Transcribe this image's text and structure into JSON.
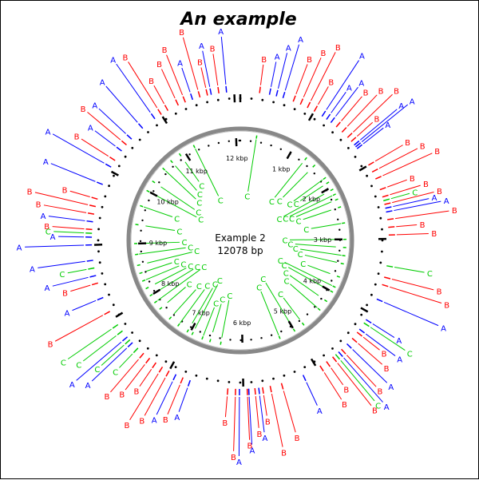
{
  "title": "An example",
  "plasmid": {
    "name": "Example 2",
    "length_label": "12078 bp",
    "length": 12078
  },
  "ticks": {
    "labels": [
      "1 kbp",
      "2 kbp",
      "3 kbp",
      "4 kbp",
      "5 kbp",
      "6 kbp",
      "7 kbp",
      "8 kbp",
      "9 kbp",
      "10 kbp",
      "11 kbp",
      "12 kbp"
    ]
  },
  "tracks": [
    {
      "label": "A",
      "color": "#0000ff"
    },
    {
      "label": "B",
      "color": "#ff0000"
    },
    {
      "label": "C",
      "color": "#00cc00"
    }
  ],
  "features": {
    "A": [
      {
        "pos": 380,
        "ring": "outer"
      },
      {
        "pos": 470,
        "ring": "outer"
      },
      {
        "pos": 560,
        "ring": "outer"
      },
      {
        "pos": 1120,
        "ring": "outer"
      },
      {
        "pos": 1190,
        "ring": "outer"
      },
      {
        "pos": 1260,
        "ring": "outer"
      },
      {
        "pos": 1680,
        "ring": "outer"
      },
      {
        "pos": 1710,
        "ring": "outer"
      },
      {
        "pos": 1740,
        "ring": "outer"
      },
      {
        "pos": 2600,
        "ring": "outer"
      },
      {
        "pos": 2650,
        "ring": "outer"
      },
      {
        "pos": 3800,
        "ring": "outer"
      },
      {
        "pos": 4100,
        "ring": "outer"
      },
      {
        "pos": 4250,
        "ring": "outer"
      },
      {
        "pos": 4500,
        "ring": "outer"
      },
      {
        "pos": 4650,
        "ring": "outer"
      },
      {
        "pos": 5200,
        "ring": "outer"
      },
      {
        "pos": 5800,
        "ring": "outer"
      },
      {
        "pos": 5930,
        "ring": "outer"
      },
      {
        "pos": 6050,
        "ring": "outer"
      },
      {
        "pos": 6700,
        "ring": "outer"
      },
      {
        "pos": 6900,
        "ring": "outer"
      },
      {
        "pos": 7600,
        "ring": "outer"
      },
      {
        "pos": 7700,
        "ring": "outer"
      },
      {
        "pos": 8300,
        "ring": "outer"
      },
      {
        "pos": 8600,
        "ring": "outer"
      },
      {
        "pos": 8800,
        "ring": "outer"
      },
      {
        "pos": 9000,
        "ring": "outer"
      },
      {
        "pos": 9100,
        "ring": "outer"
      },
      {
        "pos": 9300,
        "ring": "outer"
      },
      {
        "pos": 9800,
        "ring": "outer"
      },
      {
        "pos": 10050,
        "ring": "outer"
      },
      {
        "pos": 10300,
        "ring": "outer"
      },
      {
        "pos": 10500,
        "ring": "outer"
      },
      {
        "pos": 10700,
        "ring": "outer"
      },
      {
        "pos": 10900,
        "ring": "outer"
      },
      {
        "pos": 11450,
        "ring": "outer"
      },
      {
        "pos": 11700,
        "ring": "outer"
      },
      {
        "pos": 11900,
        "ring": "outer"
      }
    ],
    "B": [
      {
        "pos": 250
      },
      {
        "pos": 700
      },
      {
        "pos": 800
      },
      {
        "pos": 900
      },
      {
        "pos": 1000
      },
      {
        "pos": 1350
      },
      {
        "pos": 1450
      },
      {
        "pos": 1550
      },
      {
        "pos": 1620
      },
      {
        "pos": 2000
      },
      {
        "pos": 2100
      },
      {
        "pos": 2200
      },
      {
        "pos": 2350
      },
      {
        "pos": 2450
      },
      {
        "pos": 2550
      },
      {
        "pos": 2750
      },
      {
        "pos": 2850
      },
      {
        "pos": 2950
      },
      {
        "pos": 3500
      },
      {
        "pos": 3600
      },
      {
        "pos": 4300
      },
      {
        "pos": 4400
      },
      {
        "pos": 4600
      },
      {
        "pos": 4750
      },
      {
        "pos": 4850
      },
      {
        "pos": 4950
      },
      {
        "pos": 5500
      },
      {
        "pos": 5650
      },
      {
        "pos": 5750
      },
      {
        "pos": 5850
      },
      {
        "pos": 5950
      },
      {
        "pos": 6100
      },
      {
        "pos": 6200
      },
      {
        "pos": 6800
      },
      {
        "pos": 7000
      },
      {
        "pos": 7100
      },
      {
        "pos": 7200
      },
      {
        "pos": 7300
      },
      {
        "pos": 7400
      },
      {
        "pos": 8100
      },
      {
        "pos": 8500
      },
      {
        "pos": 9200
      },
      {
        "pos": 9400
      },
      {
        "pos": 9500
      },
      {
        "pos": 9600
      },
      {
        "pos": 10150
      },
      {
        "pos": 10400
      },
      {
        "pos": 11000
      },
      {
        "pos": 11100
      },
      {
        "pos": 11250
      },
      {
        "pos": 11350
      },
      {
        "pos": 11550
      },
      {
        "pos": 11650
      },
      {
        "pos": 11800
      }
    ],
    "C_outer": [
      {
        "pos": 2500
      },
      {
        "pos": 3350
      },
      {
        "pos": 4150
      },
      {
        "pos": 4700
      },
      {
        "pos": 7500
      },
      {
        "pos": 7650
      },
      {
        "pos": 7800
      },
      {
        "pos": 7900
      },
      {
        "pos": 8700
      },
      {
        "pos": 9150
      }
    ],
    "C_inner": [
      {
        "pos": 300
      },
      {
        "pos": 1300
      },
      {
        "pos": 1500
      },
      {
        "pos": 1800
      },
      {
        "pos": 1900
      },
      {
        "pos": 2050
      },
      {
        "pos": 2150
      },
      {
        "pos": 2250
      },
      {
        "pos": 2400
      },
      {
        "pos": 2700
      },
      {
        "pos": 3000
      },
      {
        "pos": 3150
      },
      {
        "pos": 3300
      },
      {
        "pos": 3450
      },
      {
        "pos": 3700
      },
      {
        "pos": 3900
      },
      {
        "pos": 4000
      },
      {
        "pos": 4200
      },
      {
        "pos": 4400
      },
      {
        "pos": 4800
      },
      {
        "pos": 5000
      },
      {
        "pos": 5300
      },
      {
        "pos": 6400
      },
      {
        "pos": 6600
      },
      {
        "pos": 6750
      },
      {
        "pos": 6950
      },
      {
        "pos": 7050
      },
      {
        "pos": 7250
      },
      {
        "pos": 7450
      },
      {
        "pos": 7700
      },
      {
        "pos": 7850
      },
      {
        "pos": 8000
      },
      {
        "pos": 8150
      },
      {
        "pos": 8300
      },
      {
        "pos": 8450
      },
      {
        "pos": 8600
      },
      {
        "pos": 8800
      },
      {
        "pos": 9000
      },
      {
        "pos": 9350
      },
      {
        "pos": 9700
      },
      {
        "pos": 10000
      },
      {
        "pos": 10200
      },
      {
        "pos": 10500
      },
      {
        "pos": 10700
      },
      {
        "pos": 10900
      },
      {
        "pos": 11200
      }
    ]
  }
}
